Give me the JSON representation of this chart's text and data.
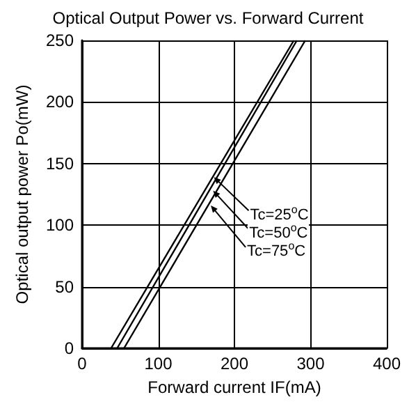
{
  "chart_data": {
    "type": "line",
    "title": "Optical Output Power vs. Forward Current",
    "xlabel": "Forward current IF(mA)",
    "ylabel": "Optical output power Po(mW)",
    "xlim": [
      0,
      400
    ],
    "xticks": [
      0,
      100,
      200,
      300,
      400
    ],
    "ylim": [
      0,
      250
    ],
    "yticks": [
      0,
      50,
      100,
      150,
      200,
      250
    ],
    "grid": true,
    "marker": "none",
    "line_style": "solid",
    "series": [
      {
        "color": "#000000",
        "x": [
          38,
          278
        ],
        "values": [
          0,
          250
        ]
      },
      {
        "color": "#000000",
        "x": [
          46,
          282
        ],
        "values": [
          0,
          250
        ]
      },
      {
        "color": "#000000",
        "x": [
          55,
          293
        ],
        "values": [
          0,
          250
        ]
      }
    ],
    "annotations": [
      {
        "text": "Tc=25$^{o}$C",
        "x": 173,
        "y": 139
      },
      {
        "text": "Tc=50$^{o}$C",
        "x": 172,
        "y": 128
      },
      {
        "text": "Tc=75$^{o}$C",
        "x": 169,
        "y": 116
      }
    ]
  }
}
